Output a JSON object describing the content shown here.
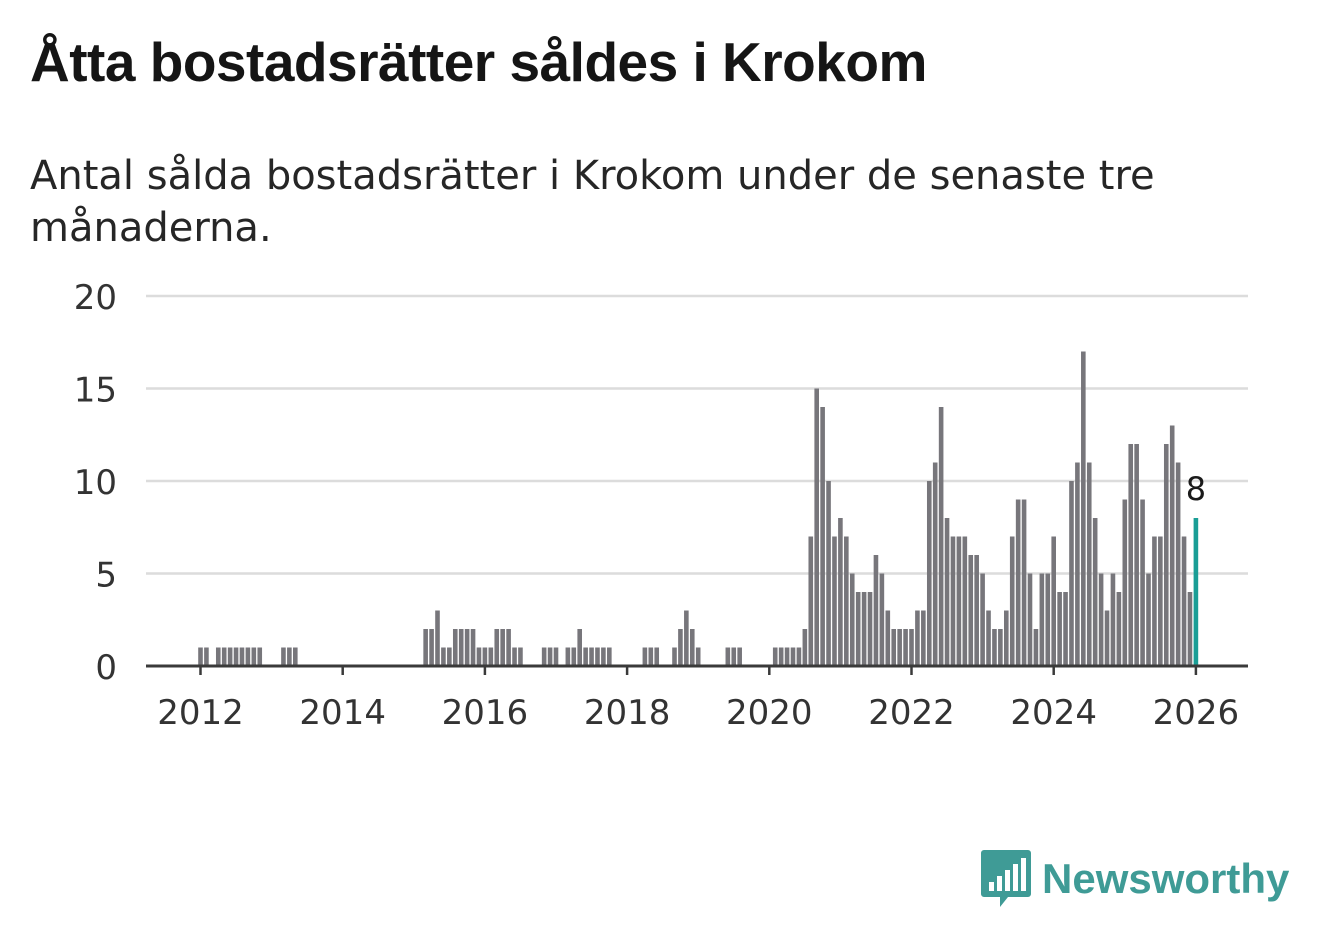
{
  "title": "Åtta bostadsrätter såldes i Krokom",
  "subtitle": "Antal sålda bostadsrätter i Krokom under de senaste tre månaderna.",
  "brand": {
    "name": "Newsworthy",
    "color": "#3f9b96",
    "icon": "bar-chart-speech-bubble-icon"
  },
  "chart_data": {
    "type": "bar",
    "title": "",
    "xlabel": "",
    "ylabel": "",
    "x_unit": "month",
    "first_month": "2012-01",
    "ylim": [
      0,
      20
    ],
    "yticks": [
      "0",
      "5",
      "10",
      "15",
      "20"
    ],
    "xticks": [
      "2012",
      "2014",
      "2016",
      "2018",
      "2020",
      "2022",
      "2024",
      "2026"
    ],
    "grid": true,
    "bar_color": "#77767b",
    "highlight_color": "#1a9e96",
    "highlight_label": "8",
    "values": [
      1,
      1,
      0,
      1,
      1,
      1,
      1,
      1,
      1,
      1,
      1,
      0,
      0,
      0,
      1,
      1,
      1,
      0,
      0,
      0,
      0,
      0,
      0,
      0,
      0,
      0,
      0,
      0,
      0,
      0,
      0,
      0,
      0,
      0,
      0,
      0,
      0,
      0,
      2,
      2,
      3,
      1,
      1,
      2,
      2,
      2,
      2,
      1,
      1,
      1,
      2,
      2,
      2,
      1,
      1,
      0,
      0,
      0,
      1,
      1,
      1,
      0,
      1,
      1,
      2,
      1,
      1,
      1,
      1,
      1,
      0,
      0,
      0,
      0,
      0,
      1,
      1,
      1,
      0,
      0,
      1,
      2,
      3,
      2,
      1,
      0,
      0,
      0,
      0,
      1,
      1,
      1,
      0,
      0,
      0,
      0,
      0,
      1,
      1,
      1,
      1,
      1,
      2,
      7,
      15,
      14,
      10,
      7,
      8,
      7,
      5,
      4,
      4,
      4,
      6,
      5,
      3,
      2,
      2,
      2,
      2,
      3,
      3,
      10,
      11,
      14,
      8,
      7,
      7,
      7,
      6,
      6,
      5,
      3,
      2,
      2,
      3,
      7,
      9,
      9,
      5,
      2,
      5,
      5,
      7,
      4,
      4,
      10,
      11,
      17,
      11,
      8,
      5,
      3,
      5,
      4,
      9,
      12,
      12,
      9,
      5,
      7,
      7,
      12,
      13,
      11,
      7,
      4,
      8
    ]
  }
}
